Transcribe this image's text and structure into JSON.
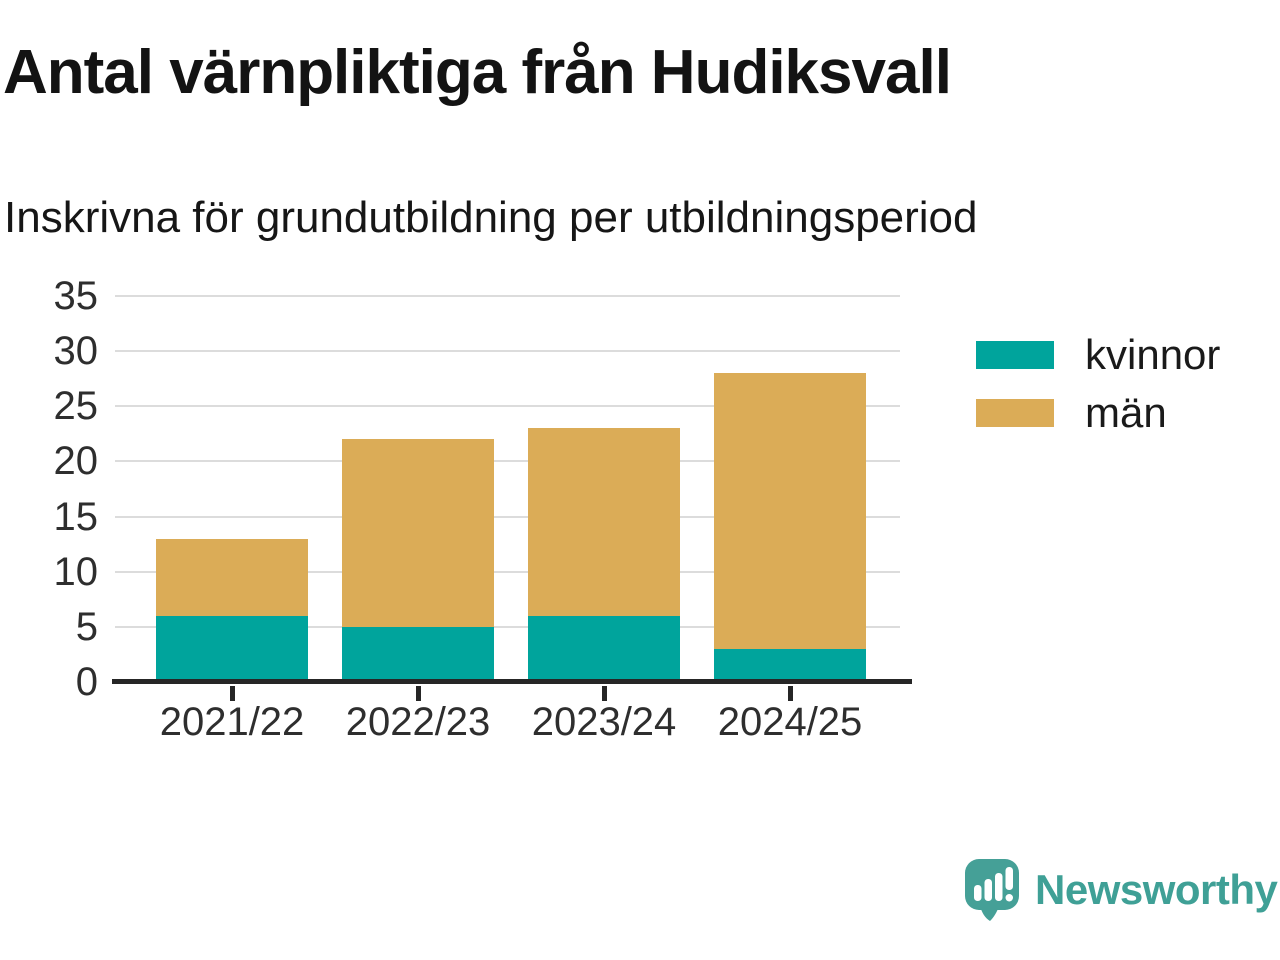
{
  "header": {
    "title": "Antal värnpliktiga från Hudiksvall",
    "subtitle": "Inskrivna för grundutbildning per utbildningsperiod"
  },
  "chart_data": {
    "type": "bar",
    "stacked": true,
    "title": "Antal värnpliktiga från Hudiksvall",
    "subtitle": "Inskrivna för grundutbildning per utbildningsperiod",
    "categories": [
      "2021/22",
      "2022/23",
      "2023/24",
      "2024/25"
    ],
    "series": [
      {
        "name": "kvinnor",
        "color": "#00A49C",
        "values": [
          6,
          5,
          6,
          3
        ]
      },
      {
        "name": "män",
        "color": "#DBAC57",
        "values": [
          7,
          17,
          17,
          25
        ]
      }
    ],
    "totals": [
      13,
      22,
      23,
      28
    ],
    "xlabel": "",
    "ylabel": "",
    "ylim": [
      0,
      35
    ],
    "yticks": [
      0,
      5,
      10,
      15,
      20,
      25,
      30,
      35
    ],
    "grid": true,
    "legend_position": "right"
  },
  "legend": {
    "items": [
      {
        "label": "kvinnor",
        "color": "#00A49C"
      },
      {
        "label": "män",
        "color": "#DBAC57"
      }
    ]
  },
  "branding": {
    "name": "Newsworthy",
    "text_color": "#3FA096",
    "icon": "newsworthy-logo-icon",
    "icon_color": "#45A097"
  }
}
